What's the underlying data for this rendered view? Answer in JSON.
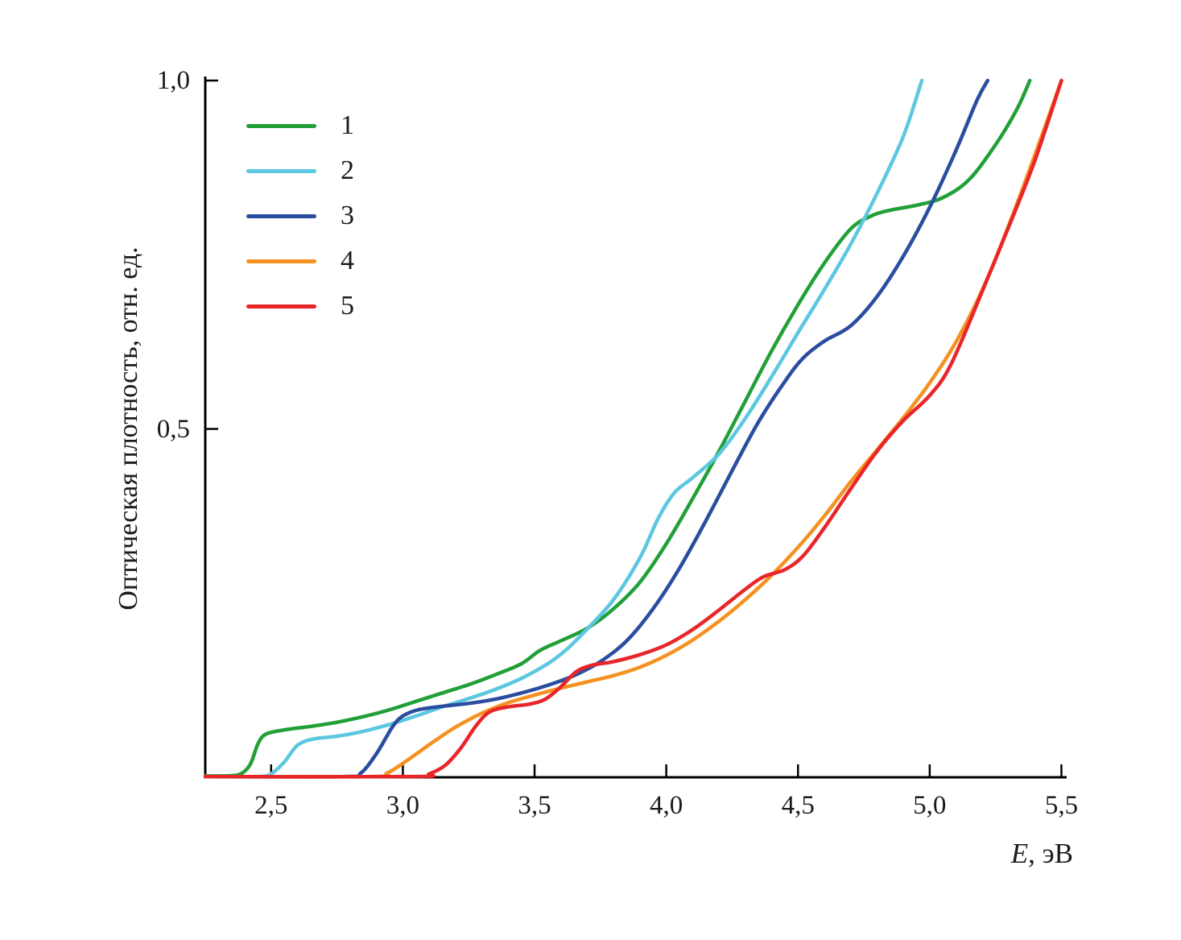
{
  "figure": {
    "background": "#ffffff",
    "text_color": "#1b1b1b",
    "axis_color": "#000000"
  },
  "chart_data": {
    "type": "line",
    "title": "",
    "xlabel_var": "E",
    "xlabel_unit": ", эВ",
    "ylabel": "Оптическая плотность, отн. ед.",
    "xlim": [
      2.25,
      5.52
    ],
    "ylim": [
      0,
      1.0
    ],
    "x_ticks": [
      2.5,
      3.0,
      3.5,
      4.0,
      4.5,
      5.0,
      5.5
    ],
    "x_tick_labels": [
      "2,5",
      "3,0",
      "3,5",
      "4,0",
      "4,5",
      "5,0",
      "5,5"
    ],
    "y_ticks": [
      0.5,
      1.0
    ],
    "y_tick_labels": [
      "0,5",
      "1,0"
    ],
    "grid": false,
    "legend_position": "top-left-inside",
    "series": [
      {
        "name": "1",
        "color": "#21a038",
        "points": [
          [
            2.25,
            0.002
          ],
          [
            2.32,
            0.002
          ],
          [
            2.38,
            0.004
          ],
          [
            2.42,
            0.018
          ],
          [
            2.45,
            0.048
          ],
          [
            2.48,
            0.062
          ],
          [
            2.55,
            0.068
          ],
          [
            2.65,
            0.073
          ],
          [
            2.75,
            0.079
          ],
          [
            2.85,
            0.087
          ],
          [
            2.95,
            0.097
          ],
          [
            3.05,
            0.109
          ],
          [
            3.15,
            0.121
          ],
          [
            3.25,
            0.133
          ],
          [
            3.35,
            0.147
          ],
          [
            3.45,
            0.163
          ],
          [
            3.52,
            0.182
          ],
          [
            3.6,
            0.196
          ],
          [
            3.7,
            0.214
          ],
          [
            3.8,
            0.242
          ],
          [
            3.9,
            0.28
          ],
          [
            4.0,
            0.335
          ],
          [
            4.1,
            0.4
          ],
          [
            4.2,
            0.468
          ],
          [
            4.3,
            0.54
          ],
          [
            4.4,
            0.612
          ],
          [
            4.5,
            0.678
          ],
          [
            4.6,
            0.738
          ],
          [
            4.7,
            0.787
          ],
          [
            4.78,
            0.806
          ],
          [
            4.85,
            0.814
          ],
          [
            4.95,
            0.821
          ],
          [
            5.05,
            0.832
          ],
          [
            5.15,
            0.858
          ],
          [
            5.25,
            0.908
          ],
          [
            5.33,
            0.958
          ],
          [
            5.38,
            1.0
          ]
        ]
      },
      {
        "name": "2",
        "color": "#5cc7e0",
        "points": [
          [
            2.25,
            0.001
          ],
          [
            2.45,
            0.001
          ],
          [
            2.5,
            0.005
          ],
          [
            2.55,
            0.022
          ],
          [
            2.6,
            0.046
          ],
          [
            2.66,
            0.055
          ],
          [
            2.75,
            0.059
          ],
          [
            2.85,
            0.066
          ],
          [
            2.95,
            0.076
          ],
          [
            3.05,
            0.088
          ],
          [
            3.15,
            0.101
          ],
          [
            3.25,
            0.113
          ],
          [
            3.35,
            0.126
          ],
          [
            3.45,
            0.142
          ],
          [
            3.55,
            0.163
          ],
          [
            3.62,
            0.183
          ],
          [
            3.7,
            0.213
          ],
          [
            3.8,
            0.255
          ],
          [
            3.9,
            0.315
          ],
          [
            3.97,
            0.372
          ],
          [
            4.03,
            0.408
          ],
          [
            4.1,
            0.43
          ],
          [
            4.2,
            0.464
          ],
          [
            4.3,
            0.515
          ],
          [
            4.4,
            0.575
          ],
          [
            4.5,
            0.638
          ],
          [
            4.6,
            0.7
          ],
          [
            4.7,
            0.765
          ],
          [
            4.8,
            0.838
          ],
          [
            4.9,
            0.92
          ],
          [
            4.97,
            1.0
          ]
        ]
      },
      {
        "name": "3",
        "color": "#2b4da0",
        "points": [
          [
            2.25,
            0.001
          ],
          [
            2.78,
            0.001
          ],
          [
            2.84,
            0.006
          ],
          [
            2.9,
            0.034
          ],
          [
            2.96,
            0.072
          ],
          [
            3.0,
            0.088
          ],
          [
            3.06,
            0.097
          ],
          [
            3.15,
            0.102
          ],
          [
            3.25,
            0.106
          ],
          [
            3.35,
            0.112
          ],
          [
            3.45,
            0.121
          ],
          [
            3.55,
            0.132
          ],
          [
            3.65,
            0.146
          ],
          [
            3.75,
            0.166
          ],
          [
            3.85,
            0.196
          ],
          [
            3.95,
            0.242
          ],
          [
            4.05,
            0.3
          ],
          [
            4.15,
            0.368
          ],
          [
            4.25,
            0.44
          ],
          [
            4.35,
            0.51
          ],
          [
            4.45,
            0.568
          ],
          [
            4.52,
            0.602
          ],
          [
            4.6,
            0.626
          ],
          [
            4.7,
            0.648
          ],
          [
            4.8,
            0.69
          ],
          [
            4.9,
            0.748
          ],
          [
            5.0,
            0.818
          ],
          [
            5.1,
            0.9
          ],
          [
            5.18,
            0.972
          ],
          [
            5.22,
            1.0
          ]
        ]
      },
      {
        "name": "4",
        "color": "#f59120",
        "points": [
          [
            2.25,
            0.001
          ],
          [
            2.88,
            0.001
          ],
          [
            2.94,
            0.006
          ],
          [
            3.0,
            0.02
          ],
          [
            3.06,
            0.036
          ],
          [
            3.12,
            0.052
          ],
          [
            3.2,
            0.072
          ],
          [
            3.3,
            0.092
          ],
          [
            3.4,
            0.107
          ],
          [
            3.5,
            0.118
          ],
          [
            3.6,
            0.128
          ],
          [
            3.7,
            0.137
          ],
          [
            3.8,
            0.146
          ],
          [
            3.9,
            0.158
          ],
          [
            4.0,
            0.175
          ],
          [
            4.1,
            0.197
          ],
          [
            4.2,
            0.224
          ],
          [
            4.3,
            0.255
          ],
          [
            4.4,
            0.29
          ],
          [
            4.5,
            0.33
          ],
          [
            4.6,
            0.375
          ],
          [
            4.7,
            0.424
          ],
          [
            4.8,
            0.47
          ],
          [
            4.9,
            0.516
          ],
          [
            5.0,
            0.566
          ],
          [
            5.1,
            0.625
          ],
          [
            5.2,
            0.7
          ],
          [
            5.3,
            0.792
          ],
          [
            5.4,
            0.894
          ],
          [
            5.5,
            1.0
          ]
        ]
      },
      {
        "name": "5",
        "color": "#e8262a",
        "points": [
          [
            2.25,
            0.001
          ],
          [
            3.04,
            0.001
          ],
          [
            3.1,
            0.005
          ],
          [
            3.16,
            0.017
          ],
          [
            3.22,
            0.042
          ],
          [
            3.28,
            0.075
          ],
          [
            3.33,
            0.094
          ],
          [
            3.4,
            0.101
          ],
          [
            3.48,
            0.105
          ],
          [
            3.54,
            0.112
          ],
          [
            3.6,
            0.13
          ],
          [
            3.66,
            0.152
          ],
          [
            3.72,
            0.161
          ],
          [
            3.8,
            0.166
          ],
          [
            3.9,
            0.176
          ],
          [
            4.0,
            0.19
          ],
          [
            4.1,
            0.212
          ],
          [
            4.2,
            0.24
          ],
          [
            4.3,
            0.27
          ],
          [
            4.37,
            0.288
          ],
          [
            4.45,
            0.298
          ],
          [
            4.52,
            0.318
          ],
          [
            4.6,
            0.358
          ],
          [
            4.7,
            0.414
          ],
          [
            4.8,
            0.468
          ],
          [
            4.9,
            0.512
          ],
          [
            5.0,
            0.548
          ],
          [
            5.08,
            0.592
          ],
          [
            5.2,
            0.698
          ],
          [
            5.3,
            0.79
          ],
          [
            5.4,
            0.886
          ],
          [
            5.5,
            1.0
          ]
        ]
      }
    ]
  }
}
